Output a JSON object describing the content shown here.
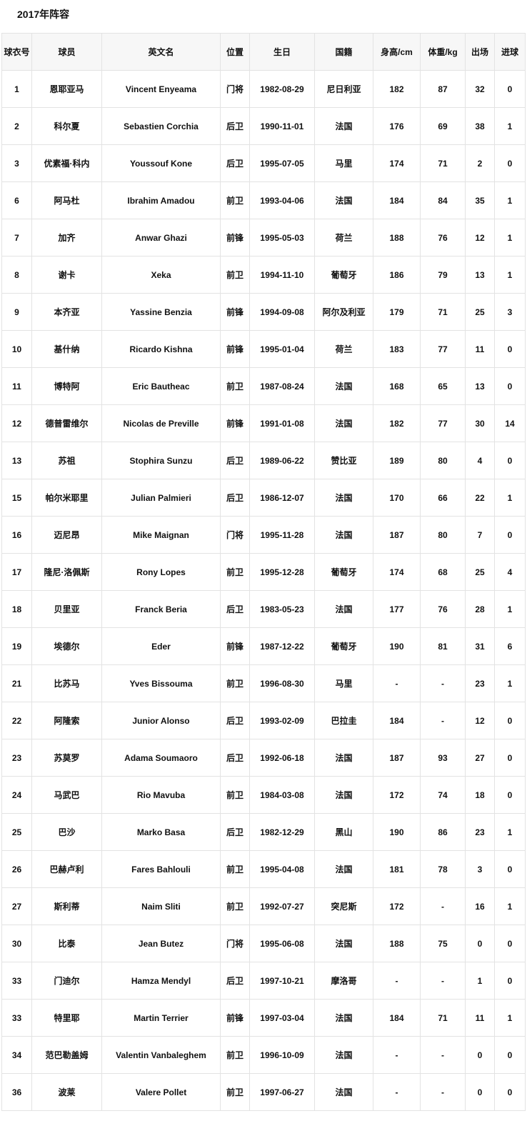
{
  "title": "2017年阵容",
  "headers": [
    "球衣号",
    "球员",
    "英文名",
    "位置",
    "生日",
    "国籍",
    "身高/cm",
    "体重/kg",
    "出场",
    "进球"
  ],
  "rows": [
    [
      "1",
      "恩耶亚马",
      "Vincent Enyeama",
      "门将",
      "1982-08-29",
      "尼日利亚",
      "182",
      "87",
      "32",
      "0"
    ],
    [
      "2",
      "科尔夏",
      "Sebastien Corchia",
      "后卫",
      "1990-11-01",
      "法国",
      "176",
      "69",
      "38",
      "1"
    ],
    [
      "3",
      "优素福·科内",
      "Youssouf Kone",
      "后卫",
      "1995-07-05",
      "马里",
      "174",
      "71",
      "2",
      "0"
    ],
    [
      "6",
      "阿马杜",
      "Ibrahim Amadou",
      "前卫",
      "1993-04-06",
      "法国",
      "184",
      "84",
      "35",
      "1"
    ],
    [
      "7",
      "加齐",
      "Anwar Ghazi",
      "前锋",
      "1995-05-03",
      "荷兰",
      "188",
      "76",
      "12",
      "1"
    ],
    [
      "8",
      "谢卡",
      "Xeka",
      "前卫",
      "1994-11-10",
      "葡萄牙",
      "186",
      "79",
      "13",
      "1"
    ],
    [
      "9",
      "本齐亚",
      "Yassine Benzia",
      "前锋",
      "1994-09-08",
      "阿尔及利亚",
      "179",
      "71",
      "25",
      "3"
    ],
    [
      "10",
      "基什纳",
      "Ricardo Kishna",
      "前锋",
      "1995-01-04",
      "荷兰",
      "183",
      "77",
      "11",
      "0"
    ],
    [
      "11",
      "博特阿",
      "Eric Bautheac",
      "前卫",
      "1987-08-24",
      "法国",
      "168",
      "65",
      "13",
      "0"
    ],
    [
      "12",
      "德普雷维尔",
      "Nicolas de Preville",
      "前锋",
      "1991-01-08",
      "法国",
      "182",
      "77",
      "30",
      "14"
    ],
    [
      "13",
      "苏祖",
      "Stophira Sunzu",
      "后卫",
      "1989-06-22",
      "赞比亚",
      "189",
      "80",
      "4",
      "0"
    ],
    [
      "15",
      "帕尔米耶里",
      "Julian Palmieri",
      "后卫",
      "1986-12-07",
      "法国",
      "170",
      "66",
      "22",
      "1"
    ],
    [
      "16",
      "迈尼昂",
      "Mike Maignan",
      "门将",
      "1995-11-28",
      "法国",
      "187",
      "80",
      "7",
      "0"
    ],
    [
      "17",
      "隆尼·洛佩斯",
      "Rony Lopes",
      "前卫",
      "1995-12-28",
      "葡萄牙",
      "174",
      "68",
      "25",
      "4"
    ],
    [
      "18",
      "贝里亚",
      "Franck Beria",
      "后卫",
      "1983-05-23",
      "法国",
      "177",
      "76",
      "28",
      "1"
    ],
    [
      "19",
      "埃德尔",
      "Eder",
      "前锋",
      "1987-12-22",
      "葡萄牙",
      "190",
      "81",
      "31",
      "6"
    ],
    [
      "21",
      "比苏马",
      "Yves Bissouma",
      "前卫",
      "1996-08-30",
      "马里",
      "-",
      "-",
      "23",
      "1"
    ],
    [
      "22",
      "阿隆索",
      "Junior Alonso",
      "后卫",
      "1993-02-09",
      "巴拉圭",
      "184",
      "-",
      "12",
      "0"
    ],
    [
      "23",
      "苏莫罗",
      "Adama Soumaoro",
      "后卫",
      "1992-06-18",
      "法国",
      "187",
      "93",
      "27",
      "0"
    ],
    [
      "24",
      "马武巴",
      "Rio Mavuba",
      "前卫",
      "1984-03-08",
      "法国",
      "172",
      "74",
      "18",
      "0"
    ],
    [
      "25",
      "巴沙",
      "Marko Basa",
      "后卫",
      "1982-12-29",
      "黑山",
      "190",
      "86",
      "23",
      "1"
    ],
    [
      "26",
      "巴赫卢利",
      "Fares Bahlouli",
      "前卫",
      "1995-04-08",
      "法国",
      "181",
      "78",
      "3",
      "0"
    ],
    [
      "27",
      "斯利蒂",
      "Naim Sliti",
      "前卫",
      "1992-07-27",
      "突尼斯",
      "172",
      "-",
      "16",
      "1"
    ],
    [
      "30",
      "比泰",
      "Jean Butez",
      "门将",
      "1995-06-08",
      "法国",
      "188",
      "75",
      "0",
      "0"
    ],
    [
      "33",
      "门迪尔",
      "Hamza Mendyl",
      "后卫",
      "1997-10-21",
      "摩洛哥",
      "-",
      "-",
      "1",
      "0"
    ],
    [
      "33",
      "特里耶",
      "Martin Terrier",
      "前锋",
      "1997-03-04",
      "法国",
      "184",
      "71",
      "11",
      "1"
    ],
    [
      "34",
      "范巴勒盖姆",
      "Valentin Vanbaleghem",
      "前卫",
      "1996-10-09",
      "法国",
      "-",
      "-",
      "0",
      "0"
    ],
    [
      "36",
      "波莱",
      "Valere Pollet",
      "前卫",
      "1997-06-27",
      "法国",
      "-",
      "-",
      "0",
      "0"
    ]
  ]
}
